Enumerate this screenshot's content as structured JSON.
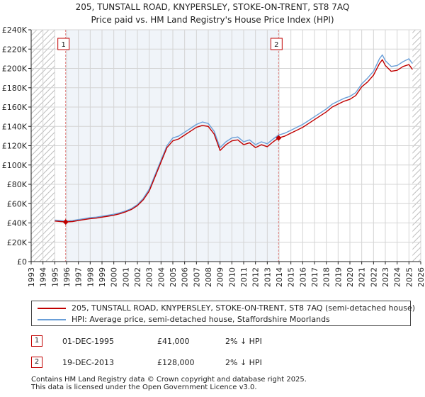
{
  "colors": {
    "property_line": "#c00000",
    "hpi_line": "#6a9fd8",
    "sale_box": "#c00000",
    "sale_vline": "#e08080",
    "hatch": "#bdbdbd",
    "shade": "#dde6f1",
    "grid": "#d4d4d4"
  },
  "chart_data": {
    "type": "line",
    "title": "205, TUNSTALL ROAD, KNYPERSLEY, STOKE-ON-TRENT, ST8 7AQ",
    "subtitle": "Price paid vs. HM Land Registry's House Price Index (HPI)",
    "xlim": [
      1993,
      2026
    ],
    "ylim": [
      0,
      240000
    ],
    "x_ticks": [
      "1993",
      "1994",
      "1995",
      "1996",
      "1997",
      "1998",
      "1999",
      "2000",
      "2001",
      "2002",
      "2003",
      "2004",
      "2005",
      "2006",
      "2007",
      "2008",
      "2009",
      "2010",
      "2011",
      "2012",
      "2013",
      "2014",
      "2015",
      "2016",
      "2017",
      "2018",
      "2019",
      "2020",
      "2021",
      "2022",
      "2023",
      "2024",
      "2025",
      "2026"
    ],
    "y_ticks": [
      {
        "value": 0,
        "label": "£0"
      },
      {
        "value": 20000,
        "label": "£20K"
      },
      {
        "value": 40000,
        "label": "£40K"
      },
      {
        "value": 60000,
        "label": "£60K"
      },
      {
        "value": 80000,
        "label": "£80K"
      },
      {
        "value": 100000,
        "label": "£100K"
      },
      {
        "value": 120000,
        "label": "£120K"
      },
      {
        "value": 140000,
        "label": "£140K"
      },
      {
        "value": 160000,
        "label": "£160K"
      },
      {
        "value": 180000,
        "label": "£180K"
      },
      {
        "value": 200000,
        "label": "£200K"
      },
      {
        "value": 220000,
        "label": "£220K"
      },
      {
        "value": 240000,
        "label": "£240K"
      }
    ],
    "data_start": 1995.0,
    "data_end": 2025.3,
    "grid": true,
    "series": [
      {
        "name": "205, TUNSTALL ROAD, KNYPERSLEY, STOKE-ON-TRENT, ST8 7AQ (semi-detached house)",
        "color": "#c00000",
        "points": [
          [
            1995.0,
            42000
          ],
          [
            1995.5,
            41500
          ],
          [
            1995.92,
            41000
          ],
          [
            1996.5,
            41500
          ],
          [
            1997.0,
            42500
          ],
          [
            1997.5,
            43500
          ],
          [
            1998.0,
            44500
          ],
          [
            1998.5,
            45000
          ],
          [
            1999.0,
            46000
          ],
          [
            1999.5,
            47000
          ],
          [
            2000.0,
            48000
          ],
          [
            2000.5,
            49500
          ],
          [
            2001.0,
            51500
          ],
          [
            2001.5,
            54000
          ],
          [
            2002.0,
            58000
          ],
          [
            2002.5,
            64000
          ],
          [
            2003.0,
            73000
          ],
          [
            2003.5,
            88000
          ],
          [
            2004.0,
            103000
          ],
          [
            2004.5,
            118000
          ],
          [
            2005.0,
            125000
          ],
          [
            2005.5,
            127000
          ],
          [
            2006.0,
            131000
          ],
          [
            2006.5,
            135000
          ],
          [
            2007.0,
            139000
          ],
          [
            2007.5,
            141000
          ],
          [
            2008.0,
            140000
          ],
          [
            2008.5,
            132000
          ],
          [
            2009.0,
            115000
          ],
          [
            2009.5,
            121000
          ],
          [
            2010.0,
            125000
          ],
          [
            2010.5,
            126000
          ],
          [
            2011.0,
            121000
          ],
          [
            2011.5,
            123000
          ],
          [
            2012.0,
            118000
          ],
          [
            2012.5,
            121000
          ],
          [
            2013.0,
            119000
          ],
          [
            2013.5,
            124000
          ],
          [
            2013.96,
            128000
          ],
          [
            2014.5,
            130000
          ],
          [
            2015.0,
            133000
          ],
          [
            2015.5,
            136000
          ],
          [
            2016.0,
            139000
          ],
          [
            2016.5,
            143000
          ],
          [
            2017.0,
            147000
          ],
          [
            2017.5,
            151000
          ],
          [
            2018.0,
            155000
          ],
          [
            2018.5,
            160000
          ],
          [
            2019.0,
            163000
          ],
          [
            2019.5,
            166000
          ],
          [
            2020.0,
            168000
          ],
          [
            2020.5,
            172000
          ],
          [
            2021.0,
            181000
          ],
          [
            2021.5,
            186000
          ],
          [
            2022.0,
            193000
          ],
          [
            2022.5,
            205000
          ],
          [
            2022.75,
            209000
          ],
          [
            2023.0,
            203000
          ],
          [
            2023.5,
            197000
          ],
          [
            2024.0,
            198000
          ],
          [
            2024.5,
            202000
          ],
          [
            2025.0,
            204000
          ],
          [
            2025.3,
            199000
          ]
        ]
      },
      {
        "name": "HPI: Average price, semi-detached house, Staffordshire Moorlands",
        "color": "#6a9fd8",
        "points": [
          [
            1995.0,
            43000
          ],
          [
            1995.5,
            42500
          ],
          [
            1995.92,
            42000
          ],
          [
            1996.5,
            42500
          ],
          [
            1997.0,
            43500
          ],
          [
            1997.5,
            44500
          ],
          [
            1998.0,
            45500
          ],
          [
            1998.5,
            46000
          ],
          [
            1999.0,
            47000
          ],
          [
            1999.5,
            48000
          ],
          [
            2000.0,
            49000
          ],
          [
            2000.5,
            50500
          ],
          [
            2001.0,
            52500
          ],
          [
            2001.5,
            55000
          ],
          [
            2002.0,
            59000
          ],
          [
            2002.5,
            65500
          ],
          [
            2003.0,
            75000
          ],
          [
            2003.5,
            90000
          ],
          [
            2004.0,
            105000
          ],
          [
            2004.5,
            120000
          ],
          [
            2005.0,
            128000
          ],
          [
            2005.5,
            130000
          ],
          [
            2006.0,
            134000
          ],
          [
            2006.5,
            138000
          ],
          [
            2007.0,
            142000
          ],
          [
            2007.5,
            144500
          ],
          [
            2008.0,
            143000
          ],
          [
            2008.5,
            135000
          ],
          [
            2009.0,
            118000
          ],
          [
            2009.5,
            124000
          ],
          [
            2010.0,
            128000
          ],
          [
            2010.5,
            129000
          ],
          [
            2011.0,
            124000
          ],
          [
            2011.5,
            126000
          ],
          [
            2012.0,
            121000
          ],
          [
            2012.5,
            124000
          ],
          [
            2013.0,
            122000
          ],
          [
            2013.5,
            127000
          ],
          [
            2013.96,
            131000
          ],
          [
            2014.5,
            133000
          ],
          [
            2015.0,
            136000
          ],
          [
            2015.5,
            139000
          ],
          [
            2016.0,
            142000
          ],
          [
            2016.5,
            146000
          ],
          [
            2017.0,
            150000
          ],
          [
            2017.5,
            154000
          ],
          [
            2018.0,
            158000
          ],
          [
            2018.5,
            163000
          ],
          [
            2019.0,
            166000
          ],
          [
            2019.5,
            169000
          ],
          [
            2020.0,
            171000
          ],
          [
            2020.5,
            175000
          ],
          [
            2021.0,
            184000
          ],
          [
            2021.5,
            190000
          ],
          [
            2022.0,
            197000
          ],
          [
            2022.5,
            210000
          ],
          [
            2022.75,
            214000
          ],
          [
            2023.0,
            208000
          ],
          [
            2023.5,
            202000
          ],
          [
            2024.0,
            203000
          ],
          [
            2024.5,
            207000
          ],
          [
            2025.0,
            210000
          ],
          [
            2025.3,
            205000
          ]
        ]
      }
    ],
    "sale_markers": [
      {
        "label": "1",
        "x": 1995.92,
        "y": 41000
      },
      {
        "label": "2",
        "x": 2013.96,
        "y": 128000
      }
    ]
  },
  "legend": {
    "property": "205, TUNSTALL ROAD, KNYPERSLEY, STOKE-ON-TRENT, ST8 7AQ (semi-detached house)",
    "hpi": "HPI: Average price, semi-detached house, Staffordshire Moorlands"
  },
  "sales": [
    {
      "num": "1",
      "date": "01-DEC-1995",
      "price": "£41,000",
      "hpi": "2% ↓ HPI"
    },
    {
      "num": "2",
      "date": "19-DEC-2013",
      "price": "£128,000",
      "hpi": "2% ↓ HPI"
    }
  ],
  "footer": {
    "line1": "Contains HM Land Registry data © Crown copyright and database right 2025.",
    "line2": "This data is licensed under the Open Government Licence v3.0."
  }
}
